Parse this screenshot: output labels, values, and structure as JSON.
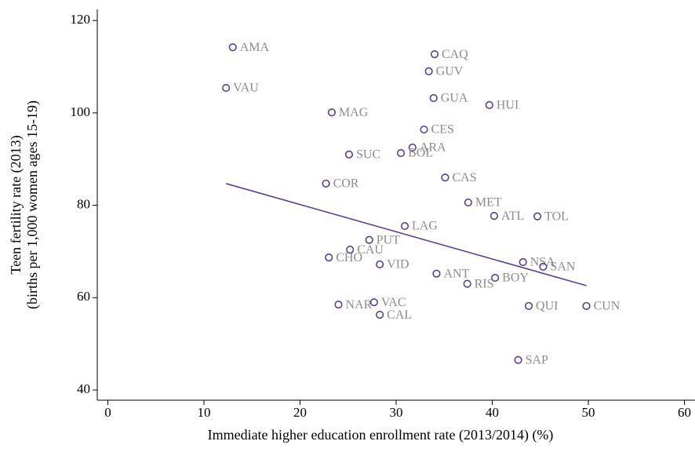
{
  "chart_data": {
    "type": "scatter",
    "xlabel": "Immediate higher education enrollment rate (2013/2014) (%)",
    "ylabel": [
      "Teen fertility rate (2013)",
      "(births per 1,000 women ages 15-19)"
    ],
    "xlim": [
      -1.1,
      61.1
    ],
    "ylim": [
      37.8,
      122.4
    ],
    "xticks": [
      0,
      10,
      20,
      30,
      40,
      50,
      60
    ],
    "yticks": [
      40,
      60,
      80,
      100,
      120
    ],
    "grid": false,
    "points": {
      "color": "#5b3e96",
      "labels": [
        "AMA",
        "VAU",
        "MAG",
        "CAQ",
        "GUV",
        "GUA",
        "HUI",
        "CES",
        "ARA",
        "BOL",
        "SUC",
        "CAS",
        "COR",
        "MET",
        "ATL",
        "TOL",
        "LAG",
        "PUT",
        "CAU",
        "CHO",
        "VID",
        "NSA",
        "SAN",
        "ANT",
        "BOY",
        "RIS",
        "NAR",
        "VAC",
        "CAL",
        "QUI",
        "CUN",
        "SAP"
      ],
      "x": [
        13.0,
        12.3,
        23.3,
        34.0,
        33.4,
        33.9,
        39.7,
        32.9,
        31.7,
        30.5,
        25.1,
        35.1,
        22.7,
        37.5,
        40.2,
        44.7,
        30.9,
        27.2,
        25.2,
        23.0,
        28.3,
        43.2,
        45.3,
        34.2,
        40.3,
        37.4,
        24.0,
        27.7,
        28.3,
        43.8,
        49.8,
        42.7
      ],
      "values": [
        114.2,
        105.4,
        100.1,
        112.7,
        109.0,
        103.2,
        101.7,
        96.4,
        92.5,
        91.3,
        91.0,
        86.0,
        84.7,
        80.6,
        77.7,
        77.6,
        75.5,
        72.5,
        70.4,
        68.7,
        67.2,
        67.7,
        66.7,
        65.2,
        64.3,
        63.0,
        58.5,
        59.0,
        56.3,
        58.2,
        58.2,
        46.5
      ]
    },
    "fit_line": {
      "color": "#5b3e96",
      "x": [
        12.3,
        49.8
      ],
      "values": [
        84.7,
        62.6
      ]
    }
  }
}
